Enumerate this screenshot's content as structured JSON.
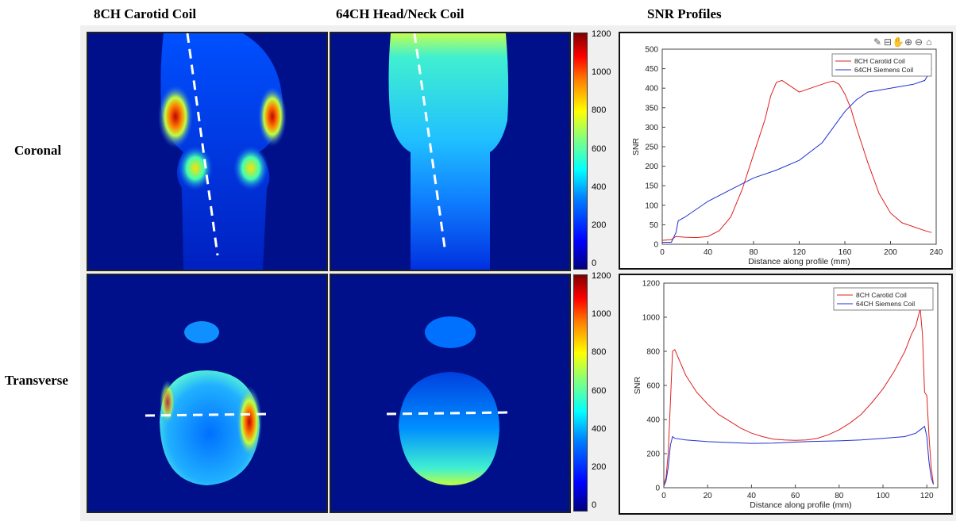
{
  "headers": {
    "col1": "8CH Carotid Coil",
    "col2": "64CH Head/Neck Coil",
    "col3": "SNR Profiles"
  },
  "rows": {
    "row1": "Coronal",
    "row2": "Transverse"
  },
  "colorbar": {
    "ticks": [
      "1200",
      "1000",
      "800",
      "600",
      "400",
      "200",
      "0"
    ]
  },
  "toolbar_icons": [
    "brush-icon",
    "data-cursor-icon",
    "pan-icon",
    "zoom-in-icon",
    "zoom-out-icon",
    "home-icon"
  ],
  "colors": {
    "red_series": "#e02020",
    "blue_series": "#2030d0",
    "image_bg": "#00108a"
  },
  "chart_data": [
    {
      "type": "line",
      "title": "",
      "xlabel": "Distance along profile (mm)",
      "ylabel": "SNR",
      "xlim": [
        0,
        240
      ],
      "ylim": [
        0,
        500
      ],
      "xticks": [
        "0",
        "40",
        "80",
        "120",
        "160",
        "200",
        "240"
      ],
      "yticks": [
        "0",
        "50",
        "100",
        "150",
        "200",
        "250",
        "300",
        "350",
        "400",
        "450",
        "500"
      ],
      "legend": "top-right",
      "series": [
        {
          "name": "8CH Carotid Coil",
          "color": "#e02020",
          "x": [
            0,
            8,
            12,
            20,
            30,
            40,
            50,
            60,
            70,
            80,
            90,
            95,
            100,
            105,
            110,
            115,
            120,
            125,
            130,
            135,
            140,
            145,
            150,
            155,
            160,
            165,
            170,
            180,
            190,
            200,
            210,
            220,
            230,
            236
          ],
          "y": [
            10,
            12,
            20,
            18,
            17,
            20,
            35,
            70,
            140,
            230,
            320,
            380,
            415,
            420,
            410,
            400,
            390,
            395,
            400,
            405,
            410,
            415,
            418,
            410,
            385,
            350,
            300,
            210,
            130,
            80,
            55,
            45,
            35,
            30
          ]
        },
        {
          "name": "64CH Siemens Coil",
          "color": "#2030d0",
          "x": [
            0,
            8,
            12,
            14,
            20,
            40,
            60,
            80,
            100,
            120,
            140,
            150,
            160,
            170,
            180,
            190,
            200,
            210,
            220,
            230,
            236
          ],
          "y": [
            5,
            5,
            30,
            60,
            70,
            110,
            140,
            170,
            190,
            215,
            260,
            300,
            340,
            370,
            390,
            395,
            400,
            405,
            410,
            420,
            450
          ]
        }
      ]
    },
    {
      "type": "line",
      "title": "",
      "xlabel": "Distance along profile (mm)",
      "ylabel": "SNR",
      "xlim": [
        0,
        125
      ],
      "ylim": [
        0,
        1200
      ],
      "xticks": [
        "0",
        "20",
        "40",
        "60",
        "80",
        "100",
        "120"
      ],
      "yticks": [
        "0",
        "200",
        "400",
        "600",
        "800",
        "1000",
        "1200"
      ],
      "legend": "top-right",
      "series": [
        {
          "name": "8CH Carotid Coil",
          "color": "#e02020",
          "x": [
            0,
            1,
            2,
            3,
            4,
            5,
            6,
            10,
            15,
            20,
            25,
            30,
            35,
            40,
            45,
            50,
            55,
            60,
            65,
            70,
            75,
            80,
            85,
            90,
            95,
            100,
            105,
            110,
            113,
            115,
            117,
            118,
            119,
            120,
            121,
            122,
            123
          ],
          "y": [
            20,
            60,
            200,
            500,
            800,
            810,
            780,
            660,
            560,
            490,
            430,
            390,
            350,
            320,
            300,
            285,
            280,
            278,
            280,
            290,
            310,
            340,
            380,
            430,
            500,
            580,
            680,
            800,
            900,
            950,
            1050,
            900,
            560,
            540,
            300,
            120,
            20
          ]
        },
        {
          "name": "64CH Siemens Coil",
          "color": "#2030d0",
          "x": [
            0,
            1,
            2,
            3,
            4,
            5,
            10,
            20,
            30,
            40,
            50,
            60,
            70,
            80,
            90,
            100,
            110,
            115,
            118,
            119,
            120,
            121,
            122,
            123
          ],
          "y": [
            10,
            40,
            120,
            250,
            300,
            290,
            280,
            270,
            265,
            260,
            262,
            268,
            272,
            275,
            280,
            290,
            300,
            320,
            350,
            360,
            300,
            150,
            60,
            20
          ]
        }
      ]
    }
  ]
}
